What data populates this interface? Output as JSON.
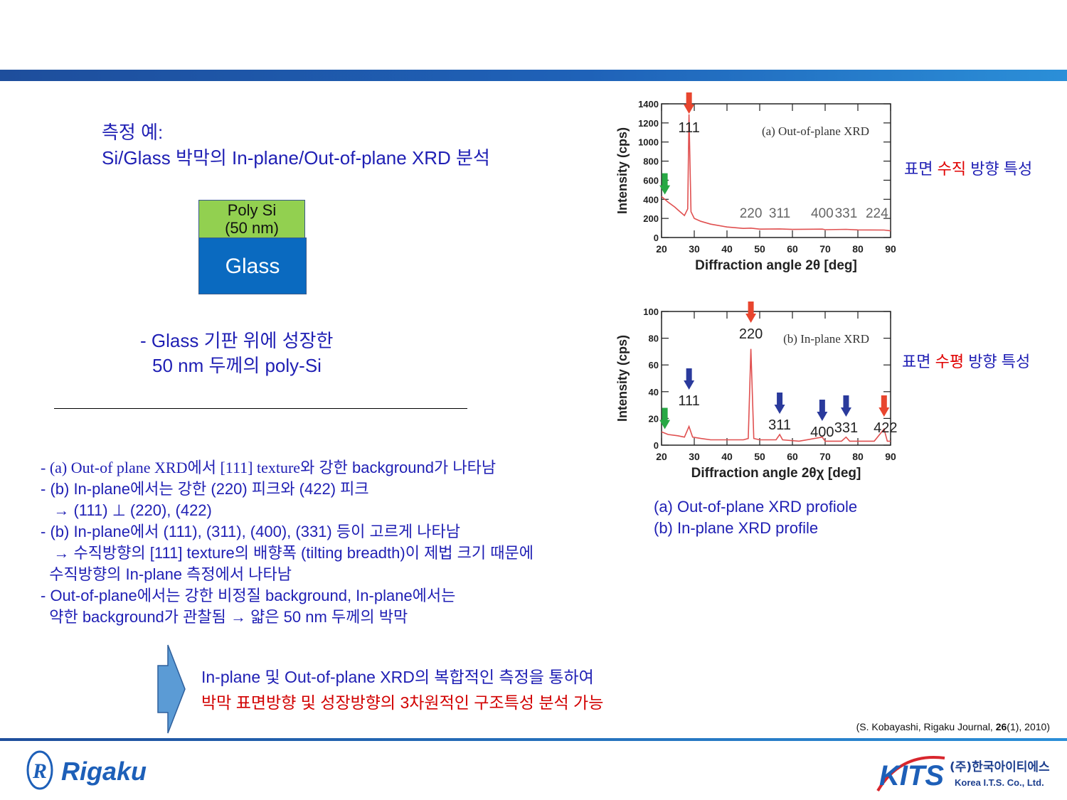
{
  "title": {
    "line1": "측정 예:",
    "line2": "Si/Glass 박막의 In-plane/Out-of-plane XRD 분석"
  },
  "layers": {
    "poly_line1": "Poly Si",
    "poly_line2": "(50 nm)",
    "glass": "Glass"
  },
  "description": {
    "line1": "- Glass 기판 위에 성장한",
    "line2": "50 nm 두께의 poly-Si"
  },
  "notes": {
    "n1_prefix": "- (a) Out-of plane XRD에서 [111] texture",
    "n1_suffix": "와 강한 background가 나타남",
    "n2": "- (b) In-plane에서는 강한 (220) 피크와 (422) 피크",
    "n3": "   → (111) ⊥ (220), (422)",
    "n4": "- (b) In-plane에서 (111), (311), (400), (331) 등이 고르게 나타남",
    "n5": "   → 수직방향의 [111] texture의 배향폭 (tilting breadth)이 제법 크기 때문에",
    "n6": "  수직방향의 In-plane 측정에서 나타남",
    "n7": "- Out-of-plane에서는 강한 비정질 background, In-plane에서는",
    "n8": "  약한 background가 관찰됨 → 얇은 50 nm 두께의 박막"
  },
  "side_labels": {
    "top_prefix": "표면 ",
    "top_highlight": "수직",
    "top_suffix": " 방향 특성",
    "bottom_prefix": "표면 ",
    "bottom_highlight": "수평",
    "bottom_suffix": " 방향 특성"
  },
  "caption": {
    "line1": "(a) Out-of-plane XRD profiole",
    "line2": "(b) In-plane XRD profile"
  },
  "conclusion": {
    "line1": "In-plane 및 Out-of-plane XRD의 복합적인 측정을 통하여",
    "line2": "박막 표면방향 및 성장방향의 3차원적인 구조특성 분석 가능"
  },
  "reference": {
    "prefix": "(S. Kobayashi, Rigaku Journal, ",
    "volume": "26",
    "suffix": "(1), 2010)"
  },
  "logos": {
    "rigaku": "Rigaku",
    "kits": "KITS",
    "kits_korean": "(주)한국아이티에스",
    "kits_english": "Korea I.T.S. Co., Ltd."
  },
  "colors": {
    "arrow_red": "#e8452e",
    "arrow_green": "#27a844",
    "arrow_blue": "#2a3a9c",
    "trace": "#e05050"
  },
  "chart_data": [
    {
      "type": "line",
      "title": "(a) Out-of-plane XRD",
      "xlabel": "Diffraction angle 2θ [deg]",
      "ylabel": "Intensity (cps)",
      "xlim": [
        20,
        90
      ],
      "ylim": [
        0,
        1400
      ],
      "xticks": [
        20,
        30,
        40,
        50,
        60,
        70,
        80,
        90
      ],
      "yticks": [
        0,
        200,
        400,
        600,
        800,
        1000,
        1200,
        1400
      ],
      "x": [
        20,
        22,
        24,
        25,
        26,
        27,
        28,
        28.4,
        29,
        30,
        32,
        35,
        40,
        45,
        47.3,
        50,
        56.1,
        60,
        69.1,
        70,
        76.4,
        80,
        88,
        90
      ],
      "y": [
        430,
        370,
        320,
        290,
        260,
        230,
        300,
        1290,
        270,
        200,
        170,
        140,
        110,
        95,
        98,
        88,
        90,
        85,
        88,
        82,
        86,
        80,
        78,
        70
      ],
      "peak_labels": [
        {
          "label": "111",
          "x": 28.4,
          "arrow": "red"
        },
        {
          "label": "220",
          "x": 47.3
        },
        {
          "label": "311",
          "x": 56.1
        },
        {
          "label": "400",
          "x": 69.1
        },
        {
          "label": "331",
          "x": 76.4
        },
        {
          "label": "224",
          "x": 88.0
        }
      ],
      "green_arrow_x": 21
    },
    {
      "type": "line",
      "title": "(b) In-plane XRD",
      "xlabel": "Diffraction angle 2θχ [deg]",
      "ylabel": "Intensity (cps)",
      "xlim": [
        20,
        90
      ],
      "ylim": [
        0,
        100
      ],
      "xticks": [
        20,
        30,
        40,
        50,
        60,
        70,
        80,
        90
      ],
      "yticks": [
        0,
        20,
        40,
        60,
        80,
        100
      ],
      "x": [
        20,
        22,
        25,
        27,
        28.4,
        29.5,
        32,
        35,
        40,
        45,
        46.5,
        47.3,
        48.2,
        50,
        55,
        56.1,
        57,
        62,
        69.1,
        70,
        75,
        76.4,
        77.5,
        85,
        88.0,
        89,
        90
      ],
      "y": [
        10,
        8,
        7,
        6,
        14,
        6,
        5,
        4,
        4,
        4,
        5,
        72,
        5,
        4,
        4,
        8,
        4,
        3,
        6,
        3,
        3,
        6,
        3,
        3,
        12,
        3,
        3
      ],
      "peak_labels": [
        {
          "label": "111",
          "x": 28.4,
          "arrow": "blue"
        },
        {
          "label": "220",
          "x": 47.3,
          "arrow": "red"
        },
        {
          "label": "311",
          "x": 56.1,
          "arrow": "blue"
        },
        {
          "label": "400",
          "x": 69.1,
          "arrow": "blue"
        },
        {
          "label": "331",
          "x": 76.4,
          "arrow": "blue"
        },
        {
          "label": "422",
          "x": 88.0,
          "arrow": "red"
        }
      ],
      "green_arrow_x": 21
    }
  ]
}
